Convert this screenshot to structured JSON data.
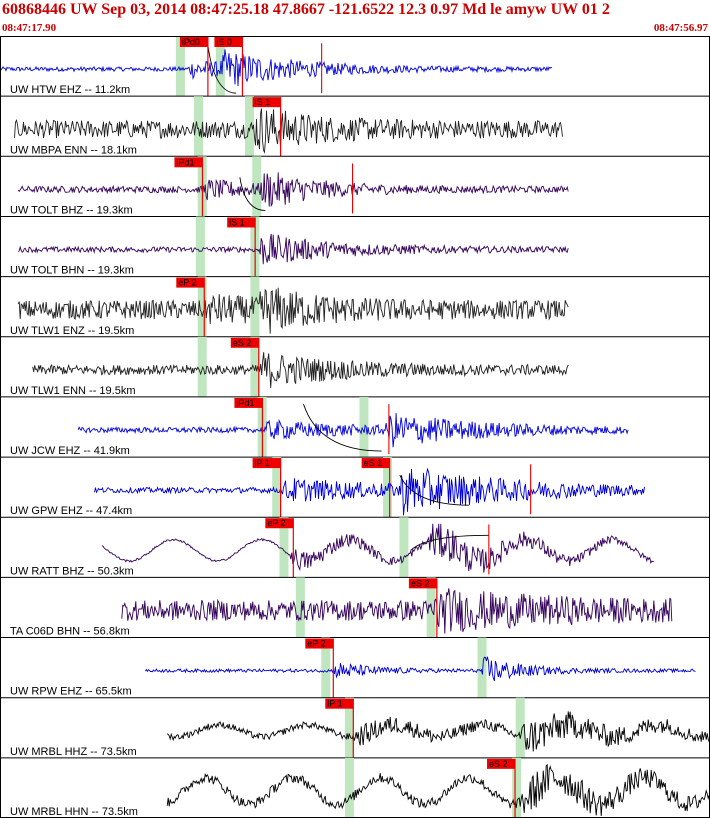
{
  "header": {
    "title": "60868446 UW Sep 03, 2014 08:47:25.18    47.8667 -121.6522 12.3 0.97 Md le amyw UW 01    2",
    "time_start": "08:47:17.90",
    "time_end": "08:47:56.97"
  },
  "colors": {
    "title": "#cc0000",
    "pick": "#ee0000",
    "window": "#bfe6bf",
    "blue": "#0000dd",
    "dark": "#222222",
    "purple": "#33005a",
    "black": "#000000"
  },
  "chart_data": {
    "type": "line",
    "x_range_seconds": [
      0,
      39.07
    ],
    "traces": [
      {
        "label": "UW HTW EHZ -- 11.2km",
        "color": "blue",
        "start": 0.0,
        "end": 30.4,
        "noise": 0.08,
        "amp": 0.55,
        "arrivals": [
          10.3,
          12.1
        ],
        "env_decay": 4,
        "picks": [
          {
            "label": "iPd0",
            "t": 9.9
          },
          {
            "label": "iS 0",
            "t": 11.8
          }
        ],
        "windows": [
          9.9,
          12.1
        ],
        "marks": [
          17.7
        ],
        "mark_color": "#ee0000",
        "curve": {
          "t0": 11.4,
          "t1": 13.0,
          "v0": 0.95,
          "v1": 0.05
        }
      },
      {
        "label": "UW MBPA ENN -- 18.1km",
        "color": "dark",
        "start": 0.8,
        "end": 31.0,
        "noise": 0.33,
        "amp": 0.7,
        "arrivals": [
          13.9
        ],
        "env_decay": 3,
        "picks": [
          {
            "label": "iS 1",
            "t": 13.9
          }
        ],
        "windows": [
          10.9,
          13.7
        ],
        "marks": []
      },
      {
        "label": "UW TOLT BHZ -- 19.3km",
        "color": "purple",
        "start": 1.0,
        "end": 31.3,
        "noise": 0.12,
        "amp": 0.6,
        "arrivals": [
          11.1,
          14.3
        ],
        "env_decay": 3,
        "picks": [
          {
            "label": "iPd1",
            "t": 9.6
          }
        ],
        "windows": [
          11.1,
          14.1
        ],
        "marks": [
          19.4
        ],
        "mark_color": "#ee0000",
        "curve": {
          "t0": 13.2,
          "t1": 14.6,
          "v0": 0.9,
          "v1": 0.35
        }
      },
      {
        "label": "UW TOLT BHN -- 19.3km",
        "color": "purple",
        "start": 1.0,
        "end": 31.3,
        "noise": 0.1,
        "amp": 0.6,
        "arrivals": [
          14.1
        ],
        "env_decay": 4,
        "picks": [
          {
            "label": "iS 1",
            "t": 12.5
          }
        ],
        "windows": [
          11.0,
          14.0
        ],
        "marks": []
      },
      {
        "label": "UW TLW1 ENZ -- 19.5km",
        "color": "dark",
        "start": 1.0,
        "end": 31.3,
        "noise": 0.35,
        "amp": 0.6,
        "arrivals": [
          11.3,
          14.2
        ],
        "env_decay": 3,
        "picks": [
          {
            "label": "eP 2",
            "t": 9.7
          }
        ],
        "windows": [
          11.1,
          14.0
        ],
        "marks": []
      },
      {
        "label": "UW TLW1 ENN -- 19.5km",
        "color": "dark",
        "start": 1.8,
        "end": 31.3,
        "noise": 0.18,
        "amp": 0.6,
        "arrivals": [
          14.2
        ],
        "env_decay": 4,
        "picks": [
          {
            "label": "eS 2",
            "t": 12.7
          }
        ],
        "windows": [
          11.1,
          14.0
        ],
        "marks": []
      },
      {
        "label": "UW JCW EHZ -- 41.9km",
        "color": "blue",
        "start": 4.3,
        "end": 34.6,
        "noise": 0.1,
        "amp": 0.55,
        "arrivals": [
          14.5,
          21.2
        ],
        "env_decay": 5,
        "picks": [
          {
            "label": "iPd1",
            "t": 12.9
          }
        ],
        "windows": [
          14.4,
          20.0
        ],
        "marks": [
          21.4
        ],
        "mark_color": "#ee0000",
        "curve": {
          "t0": 16.7,
          "t1": 21.0,
          "v0": 0.9,
          "v1": 0.12
        }
      },
      {
        "label": "UW GPW EHZ -- 47.4km",
        "color": "blue",
        "start": 5.2,
        "end": 35.5,
        "noise": 0.1,
        "amp": 0.75,
        "arrivals": [
          15.5,
          21.9
        ],
        "env_decay": 6,
        "picks": [
          {
            "label": "iP 1",
            "t": 13.9
          },
          {
            "label": "eS 1",
            "t": 19.9
          }
        ],
        "windows": [
          15.2,
          21.3
        ],
        "marks": [
          29.2
        ],
        "mark_color": "#ee0000",
        "curve": {
          "t0": 22.0,
          "t1": 25.8,
          "v0": 0.8,
          "v1": 0.3
        }
      },
      {
        "label": "UW RATT BHZ -- 50.3km",
        "color": "purple",
        "start": 5.6,
        "end": 36.0,
        "noise": 0.04,
        "amp": 0.7,
        "arrivals": [
          15.9,
          23.5
        ],
        "env_decay": 5,
        "long_period": 0.18,
        "picks": [
          {
            "label": "eP 2",
            "t": 14.6
          }
        ],
        "windows": [
          15.6,
          22.2
        ],
        "marks": [
          26.9
        ],
        "mark_color": "#ee0000",
        "curve": {
          "t0": 22.6,
          "t1": 26.9,
          "v0": 0.3,
          "v1": 0.55
        }
      },
      {
        "label": "TA C06D BHN -- 56.8km",
        "color": "purple",
        "start": 6.7,
        "end": 37.0,
        "noise": 0.38,
        "amp": 0.55,
        "arrivals": [
          23.8
        ],
        "env_decay": 6,
        "picks": [
          {
            "label": "eS 2",
            "t": 22.5
          }
        ],
        "windows": [
          16.5,
          23.7
        ],
        "marks": []
      },
      {
        "label": "UW RPW EHZ -- 65.5km",
        "color": "blue",
        "start": 8.0,
        "end": 38.3,
        "noise": 0.06,
        "amp": 0.6,
        "arrivals": [
          18.3,
          26.4
        ],
        "env_decay": 2,
        "picks": [
          {
            "label": "eP 2",
            "t": 16.8
          }
        ],
        "windows": [
          17.9,
          26.5
        ],
        "marks": []
      },
      {
        "label": "UW MRBL HHZ -- 73.5km",
        "color": "black",
        "start": 9.2,
        "end": 39.07,
        "noise": 0.12,
        "amp": 0.55,
        "arrivals": [
          19.4,
          28.6
        ],
        "env_decay": 6,
        "long_period": 0.1,
        "picks": [
          {
            "label": "iP 1",
            "t": 17.9
          }
        ],
        "windows": [
          19.2,
          28.6
        ],
        "marks": []
      },
      {
        "label": "UW MRBL HHN -- 73.5km",
        "color": "black",
        "start": 9.2,
        "end": 39.07,
        "noise": 0.18,
        "amp": 0.6,
        "arrivals": [
          28.6
        ],
        "env_decay": 6,
        "long_period": 0.22,
        "picks": [
          {
            "label": "eS 2",
            "t": 26.8
          }
        ],
        "windows": [
          19.2,
          28.4
        ],
        "marks": []
      }
    ]
  }
}
